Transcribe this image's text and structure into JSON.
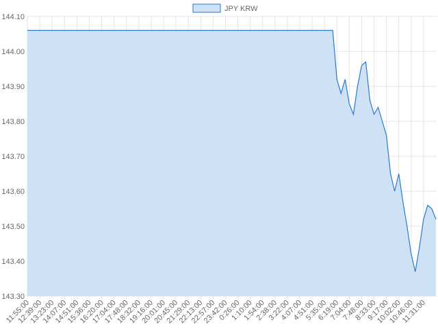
{
  "chart_data": {
    "type": "area",
    "categories": [
      "11:55:00",
      null,
      null,
      "12:39:00",
      null,
      null,
      "13:23:00",
      null,
      null,
      "14:07:00",
      null,
      null,
      "14:51:00",
      null,
      null,
      "15:36:00",
      null,
      null,
      "16:20:00",
      null,
      null,
      "17:04:00",
      null,
      null,
      "17:48:00",
      null,
      null,
      "18:32:00",
      null,
      null,
      "19:16:00",
      null,
      null,
      "20:01:00",
      null,
      null,
      "20:45:00",
      null,
      null,
      "21:29:00",
      null,
      null,
      "22:13:00",
      null,
      null,
      "22:57:00",
      null,
      null,
      "23:42:00",
      null,
      null,
      "0:26:00",
      null,
      null,
      "1:10:00",
      null,
      null,
      "1:54:00",
      null,
      null,
      "2:38:00",
      null,
      null,
      "3:22:00",
      null,
      null,
      "4:07:00",
      null,
      null,
      "4:51:00",
      null,
      null,
      "5:35:00",
      null,
      null,
      "6:19:00",
      null,
      null,
      "7:04:00",
      null,
      null,
      "7:48:00",
      null,
      null,
      "8:33:00",
      null,
      null,
      "9:17:00",
      null,
      null,
      "10:02:00",
      null,
      null,
      "10:46:00",
      null,
      null,
      "11:31:00",
      null,
      null,
      null
    ],
    "series": [
      {
        "name": "JPY KRW",
        "color": "#2b78d0",
        "fill": "#cfe1f5",
        "values": [
          144.06,
          144.06,
          144.06,
          144.06,
          144.06,
          144.06,
          144.06,
          144.06,
          144.06,
          144.06,
          144.06,
          144.06,
          144.06,
          144.06,
          144.06,
          144.06,
          144.06,
          144.06,
          144.06,
          144.06,
          144.06,
          144.06,
          144.06,
          144.06,
          144.06,
          144.06,
          144.06,
          144.06,
          144.06,
          144.06,
          144.06,
          144.06,
          144.06,
          144.06,
          144.06,
          144.06,
          144.06,
          144.06,
          144.06,
          144.06,
          144.06,
          144.06,
          144.06,
          144.06,
          144.06,
          144.06,
          144.06,
          144.06,
          144.06,
          144.06,
          144.06,
          144.06,
          144.06,
          144.06,
          144.06,
          144.06,
          144.06,
          144.06,
          144.06,
          144.06,
          144.06,
          144.06,
          144.06,
          144.06,
          144.06,
          144.06,
          144.06,
          144.06,
          144.06,
          144.06,
          144.06,
          144.06,
          144.06,
          144.06,
          144.06,
          143.92,
          143.88,
          143.92,
          143.85,
          143.82,
          143.9,
          143.96,
          143.97,
          143.86,
          143.82,
          143.84,
          143.8,
          143.76,
          143.65,
          143.6,
          143.65,
          143.57,
          143.5,
          143.42,
          143.37,
          143.44,
          143.52,
          143.56,
          143.55,
          143.52
        ]
      }
    ],
    "ylim": [
      143.3,
      144.1
    ],
    "yticks": [
      {
        "value": 143.3,
        "label": "143.30"
      },
      {
        "value": 143.4,
        "label": "143.40"
      },
      {
        "value": 143.5,
        "label": "143.50"
      },
      {
        "value": 143.6,
        "label": "143.60"
      },
      {
        "value": 143.7,
        "label": "143.70"
      },
      {
        "value": 143.8,
        "label": "143.80"
      },
      {
        "value": 143.9,
        "label": "143.90"
      },
      {
        "value": 144,
        "label": "144.00"
      },
      {
        "value": 144.1,
        "label": "144.10"
      }
    ],
    "grid": true,
    "legend": "top"
  }
}
